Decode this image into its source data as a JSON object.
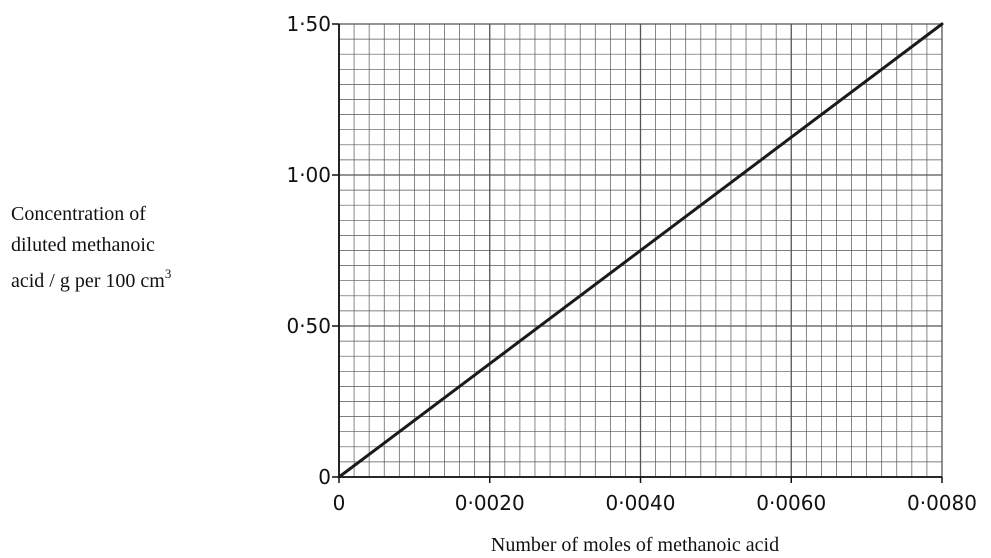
{
  "chart_data": {
    "type": "line",
    "xlabel": "Number of moles of methanoic acid",
    "ylabel_lines": [
      "Concentration  of",
      "diluted  methanoic",
      "acid / g per 100 cm"
    ],
    "ylabel_superscript": "3",
    "xlim": [
      0,
      0.008
    ],
    "ylim": [
      0,
      1.5
    ],
    "x_ticks": [
      {
        "value": 0,
        "label": "0"
      },
      {
        "value": 0.002,
        "label": "0·0020"
      },
      {
        "value": 0.004,
        "label": "0·0040"
      },
      {
        "value": 0.006,
        "label": "0·0060"
      },
      {
        "value": 0.008,
        "label": "0·0080"
      }
    ],
    "y_ticks": [
      {
        "value": 0,
        "label": "0"
      },
      {
        "value": 0.5,
        "label": "0·50"
      },
      {
        "value": 1.0,
        "label": "1·00"
      },
      {
        "value": 1.5,
        "label": "1·50"
      }
    ],
    "grid": true,
    "grid_minor_x": 0.0002,
    "grid_minor_y": 0.05,
    "series": [
      {
        "x": [
          0,
          0.008
        ],
        "y": [
          0,
          1.5
        ]
      }
    ],
    "colors": {
      "line": "#1a1a1a",
      "grid": "#555555",
      "axis": "#111111"
    }
  }
}
